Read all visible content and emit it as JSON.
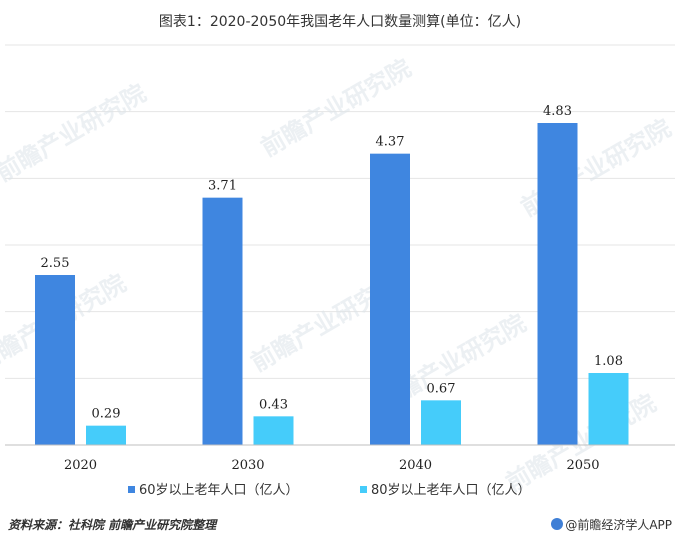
{
  "chart_data": {
    "type": "bar",
    "title": "图表1：2020-2050年我国老年人口数量测算(单位：亿人)",
    "categories": [
      "2020",
      "2030",
      "2040",
      "2050"
    ],
    "series": [
      {
        "name": "60岁以上老年人口（亿人）",
        "values": [
          2.55,
          3.71,
          4.37,
          4.83
        ],
        "color": "#3f86e0"
      },
      {
        "name": "80岁以上老年人口（亿人）",
        "values": [
          0.29,
          0.43,
          0.67,
          1.08
        ],
        "color": "#45ccfa"
      }
    ],
    "ylim": [
      0,
      6
    ],
    "grid": true,
    "legend": "bottom",
    "watermark": "前瞻产业研究院"
  },
  "footer": {
    "source": "资料来源：社科院 前瞻产业研究院整理",
    "brand": "@前瞻经济学人APP"
  }
}
